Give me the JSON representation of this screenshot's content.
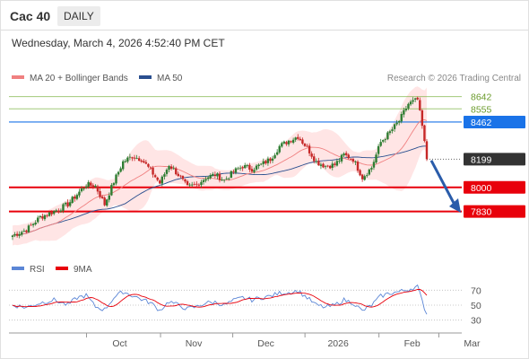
{
  "header": {
    "title": "Cac 40",
    "period": "DAILY"
  },
  "datetime": "Wednesday, March 4, 2026 4:52:40 PM CET",
  "legend": {
    "ma20": "MA 20 + Bollinger Bands",
    "ma50": "MA 50",
    "rsi": "RSI",
    "ma9": "9MA",
    "credit": "Research © 2026 Trading Central"
  },
  "colors": {
    "ma20": "#f08080",
    "ma50": "#2a4f8f",
    "bollinger": "#ffe0e0",
    "up": "#2e7d32",
    "down": "#c62828",
    "green_level": "#7cb342",
    "blue_level": "#1a73e8",
    "red_level": "#e8000b",
    "current": "#333333",
    "rsi": "#5b86d6",
    "rsi_ma": "#e8000b"
  },
  "chart_data": [
    {
      "type": "candlestick",
      "x_tick_labels": [
        "Oct",
        "Nov",
        "Dec",
        "2026",
        "Feb",
        "Mar"
      ],
      "ylim": [
        7580,
        8690
      ],
      "levels": [
        {
          "value": 8642,
          "label": "8642",
          "style": "green"
        },
        {
          "value": 8555,
          "label": "8555",
          "style": "green"
        },
        {
          "value": 8462,
          "label": "8462",
          "style": "blue"
        },
        {
          "value": 8199,
          "label": "8199",
          "style": "current"
        },
        {
          "value": 8000,
          "label": "8000",
          "style": "red"
        },
        {
          "value": 7830,
          "label": "7830",
          "style": "red"
        }
      ],
      "forecast_arrow": {
        "from": 8190,
        "to": 7840,
        "direction": "down"
      },
      "close_anchors": [
        [
          0,
          7660
        ],
        [
          6,
          7700
        ],
        [
          12,
          7790
        ],
        [
          18,
          7830
        ],
        [
          24,
          7880
        ],
        [
          28,
          7950
        ],
        [
          32,
          8020
        ],
        [
          36,
          8010
        ],
        [
          40,
          7880
        ],
        [
          44,
          8040
        ],
        [
          48,
          8180
        ],
        [
          52,
          8220
        ],
        [
          56,
          8200
        ],
        [
          60,
          8120
        ],
        [
          64,
          8030
        ],
        [
          68,
          8160
        ],
        [
          72,
          8090
        ],
        [
          76,
          8000
        ],
        [
          80,
          8020
        ],
        [
          84,
          8070
        ],
        [
          88,
          8090
        ],
        [
          92,
          8050
        ],
        [
          96,
          8110
        ],
        [
          100,
          8150
        ],
        [
          104,
          8130
        ],
        [
          108,
          8160
        ],
        [
          112,
          8200
        ],
        [
          116,
          8290
        ],
        [
          120,
          8330
        ],
        [
          124,
          8360
        ],
        [
          128,
          8280
        ],
        [
          132,
          8180
        ],
        [
          136,
          8150
        ],
        [
          140,
          8160
        ],
        [
          144,
          8230
        ],
        [
          148,
          8200
        ],
        [
          152,
          8070
        ],
        [
          156,
          8140
        ],
        [
          160,
          8320
        ],
        [
          164,
          8390
        ],
        [
          168,
          8470
        ],
        [
          172,
          8590
        ],
        [
          176,
          8620
        ],
        [
          178,
          8430
        ],
        [
          180,
          8200
        ]
      ]
    },
    {
      "type": "line",
      "name": "RSI",
      "ylim": [
        20,
        80
      ],
      "y_tick_labels": [
        70,
        50,
        30
      ],
      "rsi_anchors": [
        [
          0,
          50
        ],
        [
          6,
          47
        ],
        [
          12,
          53
        ],
        [
          18,
          57
        ],
        [
          24,
          50
        ],
        [
          28,
          60
        ],
        [
          32,
          63
        ],
        [
          36,
          48
        ],
        [
          40,
          44
        ],
        [
          44,
          60
        ],
        [
          48,
          68
        ],
        [
          52,
          63
        ],
        [
          56,
          58
        ],
        [
          60,
          53
        ],
        [
          64,
          43
        ],
        [
          68,
          55
        ],
        [
          72,
          50
        ],
        [
          76,
          45
        ],
        [
          80,
          48
        ],
        [
          84,
          53
        ],
        [
          88,
          54
        ],
        [
          92,
          50
        ],
        [
          96,
          56
        ],
        [
          100,
          60
        ],
        [
          104,
          57
        ],
        [
          108,
          60
        ],
        [
          112,
          62
        ],
        [
          116,
          66
        ],
        [
          120,
          67
        ],
        [
          124,
          69
        ],
        [
          128,
          60
        ],
        [
          132,
          50
        ],
        [
          136,
          47
        ],
        [
          140,
          50
        ],
        [
          144,
          57
        ],
        [
          148,
          53
        ],
        [
          152,
          42
        ],
        [
          156,
          50
        ],
        [
          160,
          62
        ],
        [
          164,
          66
        ],
        [
          168,
          68
        ],
        [
          172,
          71
        ],
        [
          176,
          75
        ],
        [
          178,
          55
        ],
        [
          180,
          38
        ]
      ]
    }
  ]
}
